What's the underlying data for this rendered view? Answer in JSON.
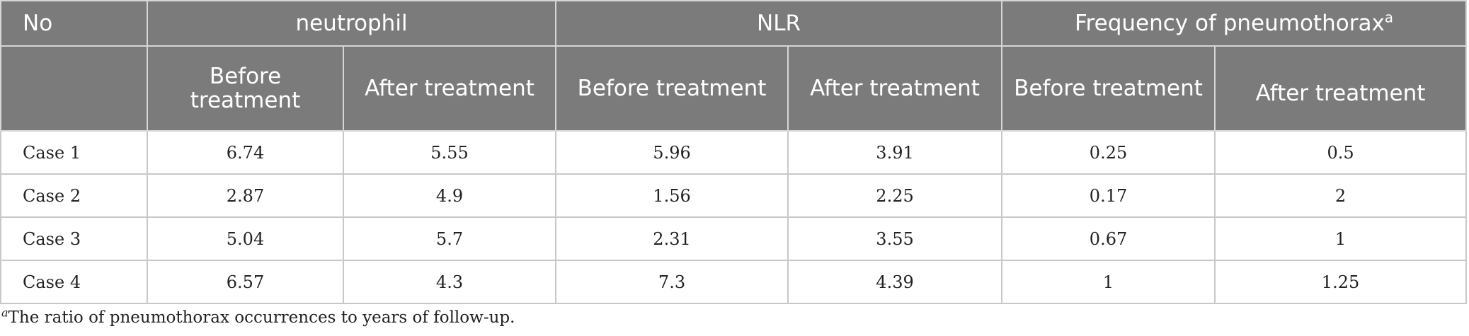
{
  "table": {
    "headers": {
      "no": "No",
      "groups": [
        {
          "label": "neutrophil",
          "note": ""
        },
        {
          "label": "NLR",
          "note": ""
        },
        {
          "label": "Frequency of pneumothorax",
          "note": "a"
        }
      ],
      "sub": [
        "Before treatment",
        "After treatment",
        "Before treatment",
        "After treatment",
        "Before treatment",
        "After treatment"
      ]
    },
    "rows": [
      {
        "label": "Case 1",
        "values": [
          "6.74",
          "5.55",
          "5.96",
          "3.91",
          "0.25",
          "0.5"
        ]
      },
      {
        "label": "Case 2",
        "values": [
          "2.87",
          "4.9",
          "1.56",
          "2.25",
          "0.17",
          "2"
        ]
      },
      {
        "label": "Case 3",
        "values": [
          "5.04",
          "5.7",
          "2.31",
          "3.55",
          "0.67",
          "1"
        ]
      },
      {
        "label": "Case 4",
        "values": [
          "6.57",
          "4.3",
          "7.3",
          "4.39",
          "1",
          "1.25"
        ]
      }
    ]
  },
  "footnote": {
    "mark": "a",
    "text": "The ratio of pneumothorax occurrences to years of follow-up."
  },
  "colors": {
    "header_bg": "#7b7b7b",
    "header_text": "#ffffff",
    "grid": "#c8c8c8"
  }
}
